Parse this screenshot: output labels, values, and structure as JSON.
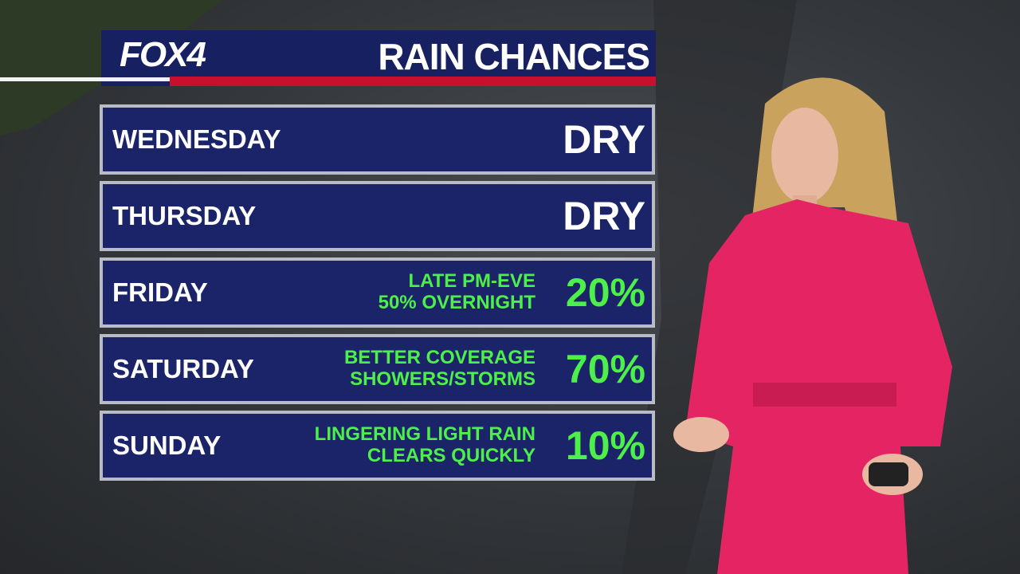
{
  "header": {
    "logo": "FOX4",
    "title": "RAIN CHANCES"
  },
  "rows": [
    {
      "day": "WEDNESDAY",
      "chance": "DRY"
    },
    {
      "day": "THURSDAY",
      "chance": "DRY"
    },
    {
      "day": "FRIDAY",
      "note": [
        "LATE PM-EVE",
        "50% OVERNIGHT"
      ],
      "chance": "20%"
    },
    {
      "day": "SATURDAY",
      "note": [
        "BETTER COVERAGE",
        "SHOWERS/STORMS"
      ],
      "chance": "70%"
    },
    {
      "day": "SUNDAY",
      "note": [
        "LINGERING LIGHT RAIN",
        "CLEARS QUICKLY"
      ],
      "chance": "10%"
    }
  ]
}
